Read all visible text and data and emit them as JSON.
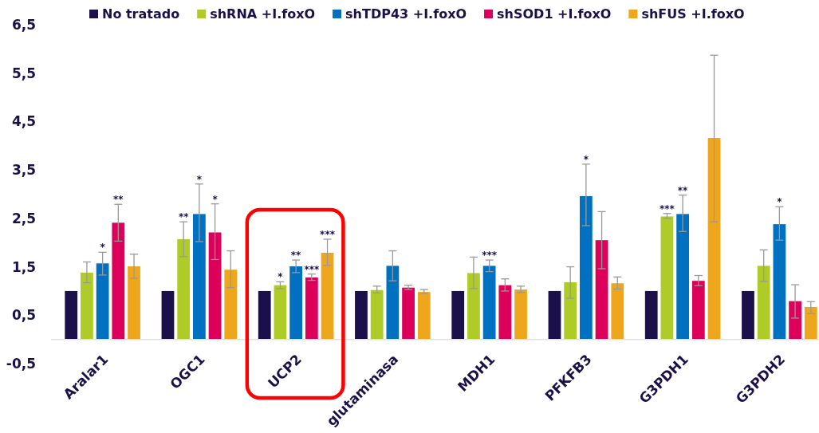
{
  "chart_data": {
    "type": "bar",
    "categories": [
      "Aralar1",
      "OGC1",
      "UCP2",
      "glutaminasa",
      "MDH1",
      "PFKFB3",
      "G3PDH1",
      "G3PDH2"
    ],
    "series": [
      {
        "name": "No tratado",
        "color": "#1b1049",
        "values": [
          1,
          1,
          1,
          1,
          1,
          1,
          1,
          1
        ]
      },
      {
        "name": "shRNA +I.foxO",
        "color": "#afcb27",
        "values": [
          1.38,
          2.07,
          1.12,
          1.02,
          1.37,
          1.18,
          2.54,
          1.52
        ],
        "errors": [
          [
            1.17,
            1.6
          ],
          [
            1.71,
            2.43
          ],
          [
            1.05,
            1.19
          ],
          [
            0.96,
            1.1
          ],
          [
            1.05,
            1.7
          ],
          [
            0.85,
            1.5
          ],
          [
            2.5,
            2.6
          ],
          [
            1.2,
            1.85
          ]
        ],
        "value_labels": [
          null,
          "**",
          "*",
          null,
          null,
          null,
          "***",
          null
        ]
      },
      {
        "name": "shTDP43 +I.foxO",
        "color": "#0070c0",
        "values": [
          1.57,
          2.59,
          1.51,
          1.52,
          1.52,
          2.96,
          2.59,
          2.38
        ],
        "errors": [
          [
            1.33,
            1.8
          ],
          [
            2.02,
            3.21
          ],
          [
            1.38,
            1.64
          ],
          [
            1.21,
            1.83
          ],
          [
            1.4,
            1.64
          ],
          [
            2.35,
            3.62
          ],
          [
            2.23,
            2.98
          ],
          [
            2.05,
            2.74
          ]
        ],
        "value_labels": [
          "*",
          null,
          "**",
          null,
          "***",
          null,
          "**",
          "*"
        ]
      },
      {
        "name": "shSOD1 +I.foxO",
        "color": "#dc005a",
        "values": [
          2.41,
          2.21,
          1.28,
          1.07,
          1.12,
          2.05,
          1.21,
          0.79
        ],
        "errors": [
          [
            2.03,
            2.79
          ],
          [
            1.65,
            2.8
          ],
          [
            1.22,
            1.35
          ],
          [
            1.03,
            1.12
          ],
          [
            1.0,
            1.25
          ],
          [
            1.46,
            2.64
          ],
          [
            1.11,
            1.32
          ],
          [
            0.44,
            1.13
          ]
        ],
        "value_labels": [
          "**",
          null,
          "***",
          null,
          null,
          null,
          null,
          null
        ]
      },
      {
        "name": "shFUS +I.foxO",
        "color": "#eea71c",
        "values": [
          1.51,
          1.44,
          1.79,
          0.98,
          1.03,
          1.16,
          4.16,
          0.67
        ],
        "errors": [
          [
            1.26,
            1.76
          ],
          [
            1.07,
            1.83
          ],
          [
            1.53,
            2.07
          ],
          [
            0.95,
            1.03
          ],
          [
            0.97,
            1.1
          ],
          [
            1.04,
            1.29
          ],
          [
            2.43,
            5.87
          ],
          [
            0.53,
            0.78
          ]
        ],
        "value_labels": [
          null,
          null,
          "***",
          null,
          null,
          null,
          null,
          null
        ]
      }
    ],
    "annotations": [
      {
        "text": "*",
        "x": "OGC1",
        "y": 3.21
      },
      {
        "text": "*",
        "x": "OGC1",
        "y": 2.8
      },
      {
        "text": "*",
        "x": "PFKFB3",
        "y": 3.62
      }
    ],
    "ylim": [
      -0.5,
      6.5
    ],
    "yticks": [
      {
        "value": -0.5,
        "label": "-0,5"
      },
      {
        "value": 0.5,
        "label": "0,5"
      },
      {
        "value": 1.5,
        "label": "1,5"
      },
      {
        "value": 2.5,
        "label": "2,5"
      },
      {
        "value": 3.5,
        "label": "3,5"
      },
      {
        "value": 4.5,
        "label": "4,5"
      },
      {
        "value": 5.5,
        "label": "5,5"
      },
      {
        "value": 6.5,
        "label": "6,5"
      }
    ],
    "legend": "top"
  }
}
